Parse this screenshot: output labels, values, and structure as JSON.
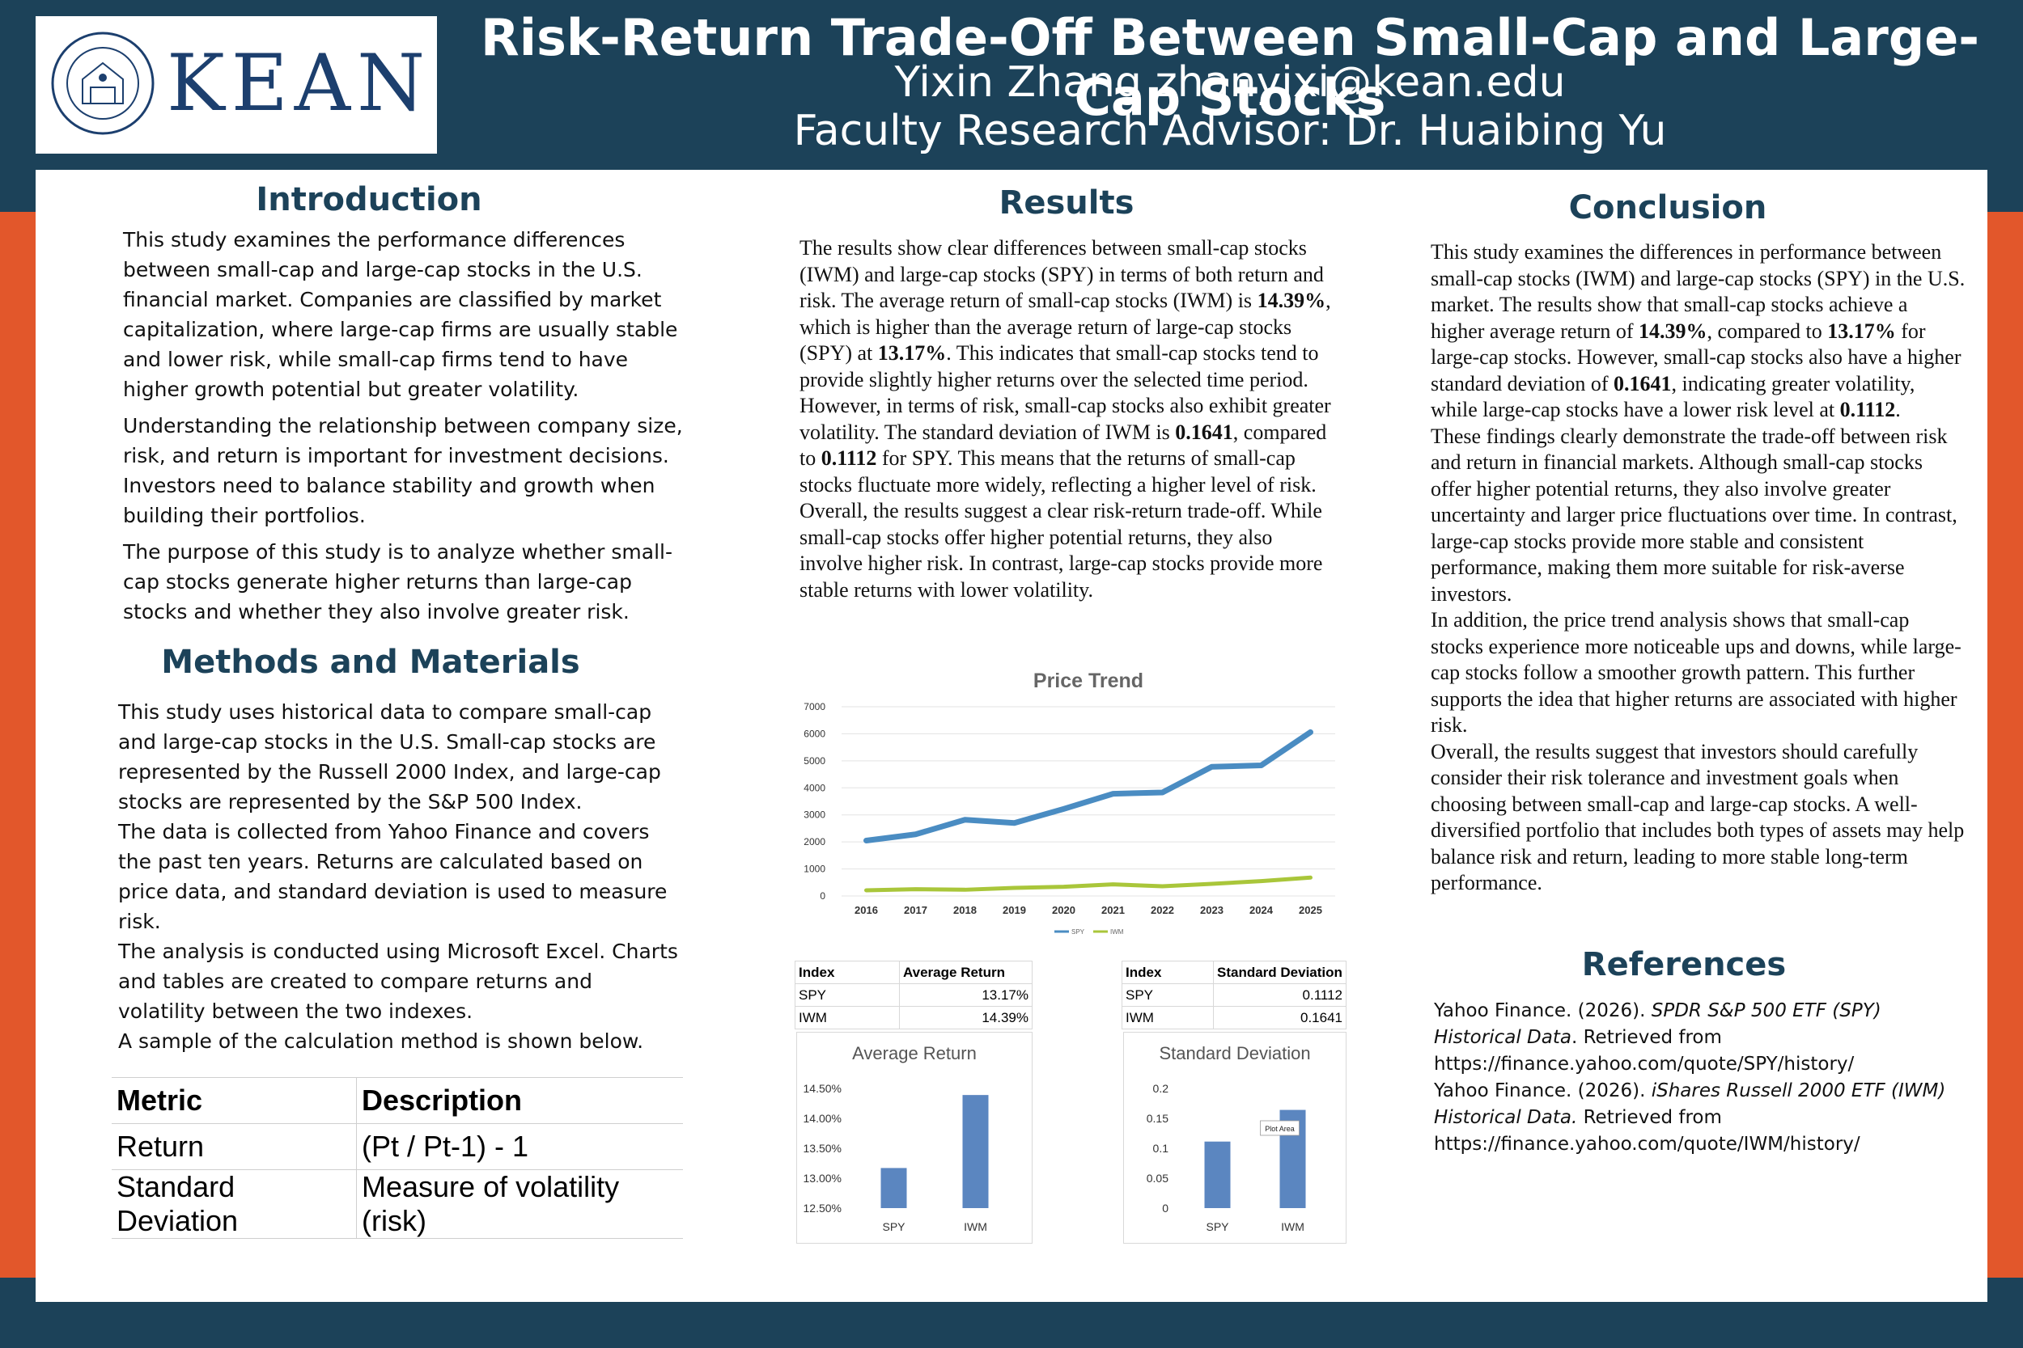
{
  "header": {
    "logo_text": "KEAN",
    "seal_text": "KEAN UNIVERSITY 1855",
    "title": "Risk-Return Trade-Off Between Small-Cap and Large-Cap Stocks",
    "author": "Yixin Zhang zhanyixi@kean.edu",
    "advisor": "Faculty Research Advisor: Dr. Huaibing Yu"
  },
  "colors": {
    "navy": "#1c4259",
    "orange": "#e2572b",
    "spy_line": "#4a8cc2",
    "iwm_line": "#a9c63a",
    "bar": "#5b86c0"
  },
  "introduction": {
    "heading": "Introduction",
    "paragraphs": [
      "This study examines the performance differences between small-cap and large-cap stocks in the U.S. financial market. Companies are classified by market capitalization, where large-cap firms are usually stable and lower risk, while small-cap firms tend to have higher growth potential but greater volatility.",
      "Understanding the relationship between company size, risk, and return is important for investment decisions. Investors need to balance stability and growth when building their portfolios.",
      "The purpose of this study is to analyze whether small-cap stocks generate higher returns than large-cap stocks and whether they also involve greater risk."
    ]
  },
  "methods": {
    "heading": "Methods and Materials",
    "lines": [
      "This study uses historical data to compare small-cap and large-cap stocks in the U.S. Small-cap stocks are represented by the Russell 2000 Index, and large-cap stocks are represented by the S&P 500 Index.",
      "The data is collected from Yahoo Finance and covers the past ten years. Returns are calculated based on price data, and standard deviation is used to measure risk.",
      "The analysis is conducted using Microsoft Excel. Charts and tables are created to compare returns and volatility between the two indexes.",
      "A sample of the calculation method is shown below."
    ],
    "table": {
      "headers": [
        "Metric",
        "Description"
      ],
      "rows": [
        [
          "Return",
          "(Pt / Pt-1) - 1"
        ],
        [
          "Standard Deviation",
          "Measure of volatility (risk)"
        ]
      ]
    }
  },
  "results": {
    "heading": "Results",
    "p1": [
      "The results show clear differences between small-cap stocks (IWM) and large-cap stocks (SPY) in terms of both return and risk. The average return of small-cap stocks (IWM) is ",
      "14.39%",
      ", which is higher than the average return of large-cap stocks (SPY) at ",
      "13.17%",
      ". This indicates that small-cap stocks tend to provide slightly higher returns over the selected time period."
    ],
    "p2": [
      "However, in terms of risk, small-cap stocks also exhibit greater volatility. The standard deviation of IWM is ",
      "0.1641",
      ", compared to ",
      "0.1112",
      " for SPY. This means that the returns of small-cap stocks fluctuate more widely, reflecting a higher level of risk."
    ],
    "p3": "Overall, the results suggest a clear risk-return trade-off. While small-cap stocks offer higher potential returns, they also involve higher risk. In contrast, large-cap stocks provide more stable returns with lower volatility.",
    "stats_return": {
      "headers": [
        "Index",
        "Average Return"
      ],
      "rows": [
        [
          "SPY",
          "13.17%"
        ],
        [
          "IWM",
          "14.39%"
        ]
      ]
    },
    "stats_sd": {
      "headers": [
        "Index",
        "Standard Deviation"
      ],
      "rows": [
        [
          "SPY",
          "0.1112"
        ],
        [
          "IWM",
          "0.1641"
        ]
      ]
    }
  },
  "chart_data": [
    {
      "type": "line",
      "title": "Price Trend",
      "x": [
        "2016",
        "2017",
        "2018",
        "2019",
        "2020",
        "2021",
        "2022",
        "2023",
        "2024",
        "2025"
      ],
      "series": [
        {
          "name": "SPY",
          "values": [
            2050,
            2280,
            2820,
            2700,
            3220,
            3780,
            3830,
            4780,
            4830,
            6060
          ]
        },
        {
          "name": "IWM",
          "values": [
            210,
            250,
            230,
            300,
            340,
            430,
            360,
            450,
            550,
            680
          ]
        }
      ],
      "yticks": [
        "7000",
        "6000",
        "5000",
        "4000",
        "3000",
        "2000",
        "1000",
        "0"
      ],
      "ylim": [
        0,
        7000
      ],
      "legend": "bottom",
      "grid": true
    },
    {
      "type": "bar",
      "title": "Average Return",
      "categories": [
        "SPY",
        "IWM"
      ],
      "values": [
        13.17,
        14.39
      ],
      "yticks": [
        "14.50%",
        "14.00%",
        "13.50%",
        "13.00%",
        "12.50%"
      ],
      "ylim": [
        12.5,
        14.5
      ]
    },
    {
      "type": "bar",
      "title": "Standard Deviation",
      "categories": [
        "SPY",
        "IWM"
      ],
      "values": [
        0.1112,
        0.1641
      ],
      "yticks": [
        "0.2",
        "0.15",
        "0.1",
        "0.05",
        "0"
      ],
      "ylim": [
        0,
        0.2
      ],
      "annotation": "Plot Area"
    }
  ],
  "conclusion": {
    "heading": "Conclusion",
    "p1": [
      "This study examines the differences in performance between small-cap stocks (IWM) and large-cap stocks (SPY) in the U.S. market. The results show that small-cap stocks achieve a higher average return of ",
      "14.39%",
      ", compared to ",
      "13.17%",
      " for large-cap stocks. However, small-cap stocks also have a higher standard deviation of ",
      "0.1641",
      ", indicating greater volatility, while large-cap stocks have a lower risk level at ",
      "0.1112",
      "."
    ],
    "p2": "These findings clearly demonstrate the trade-off between risk and return in financial markets. Although small-cap stocks offer higher potential returns, they also involve greater uncertainty and larger price fluctuations over time. In contrast, large-cap stocks provide more stable and consistent performance, making them more suitable for risk-averse investors.",
    "p3": "In addition, the price trend analysis shows that small-cap stocks experience more noticeable ups and downs, while large-cap stocks follow a smoother growth pattern. This further supports the idea that higher returns are associated with higher risk.",
    "p4": "Overall, the results suggest that investors should carefully consider their risk tolerance and investment goals when choosing between small-cap and large-cap stocks. A well-diversified portfolio that includes both types of assets may help balance risk and return, leading to more stable long-term performance."
  },
  "references": {
    "heading": "References",
    "items": [
      {
        "pre": "Yahoo Finance. (2026). ",
        "title": "SPDR S&P 500 ETF (SPY) Historical Data",
        "post": ". Retrieved from",
        "url": "https://finance.yahoo.com/quote/SPY/history/"
      },
      {
        "pre": "Yahoo Finance. (2026). ",
        "title": "iShares Russell 2000 ETF (IWM) Historical Data.",
        "post": " Retrieved from",
        "url": "https://finance.yahoo.com/quote/IWM/history/"
      }
    ]
  }
}
